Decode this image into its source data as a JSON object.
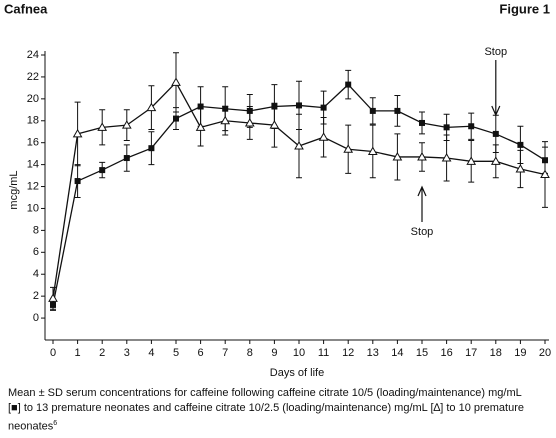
{
  "chart_data": {
    "type": "line",
    "header_left": "Cafnea",
    "header_right": "Figure 1",
    "x_label": "Days of life",
    "y_label": "mcg/mL",
    "x": [
      0,
      1,
      2,
      3,
      4,
      5,
      6,
      7,
      8,
      9,
      10,
      11,
      12,
      13,
      14,
      15,
      16,
      17,
      18,
      19,
      20
    ],
    "series": [
      {
        "marker": "square",
        "color": "#111111",
        "values": [
          1.2,
          12.5,
          13.5,
          14.6,
          15.5,
          18.2,
          19.3,
          19.1,
          18.9,
          19.3,
          19.4,
          19.2,
          21.3,
          18.9,
          18.9,
          17.8,
          17.4,
          17.5,
          16.8,
          15.8,
          14.4
        ],
        "errors": [
          0.5,
          1.5,
          0.7,
          1.2,
          1.5,
          1.0,
          1.8,
          2.0,
          1.5,
          2.0,
          2.2,
          1.5,
          1.3,
          1.2,
          1.4,
          1.0,
          1.2,
          1.2,
          1.7,
          1.7,
          1.2
        ]
      },
      {
        "marker": "triangle",
        "color": "#111111",
        "values": [
          1.8,
          16.8,
          17.4,
          17.6,
          19.2,
          21.5,
          17.4,
          18.0,
          17.8,
          17.6,
          15.7,
          16.5,
          15.4,
          15.2,
          14.7,
          14.7,
          14.6,
          14.3,
          14.3,
          13.6,
          13.1
        ],
        "errors": [
          1.0,
          2.9,
          1.6,
          1.4,
          2.0,
          2.7,
          1.7,
          1.3,
          1.5,
          2.0,
          2.9,
          1.8,
          2.2,
          2.4,
          2.1,
          1.3,
          2.1,
          1.9,
          1.5,
          1.7,
          3.0
        ]
      }
    ],
    "xlim": [
      0,
      20
    ],
    "xticks": [
      0,
      1,
      2,
      3,
      4,
      5,
      6,
      7,
      8,
      9,
      10,
      11,
      12,
      13,
      14,
      15,
      16,
      17,
      18,
      19,
      20
    ],
    "ylim": [
      -2,
      24
    ],
    "yticks": [
      0,
      2,
      4,
      6,
      8,
      10,
      12,
      14,
      16,
      18,
      20,
      22,
      24
    ],
    "annotations": [
      {
        "text": "Stop",
        "x": 18,
        "side": "top"
      },
      {
        "text": "Stop",
        "x": 15,
        "side": "bottom"
      }
    ],
    "caption": [
      "Mean ± SD serum concentrations for caffeine following caffeine citrate 10/5 (loading/maintenance) mg/mL",
      "[■] to 13 premature neonates and caffeine citrate 10/2.5 (loading/maintenance) mg/mL [∆] to 10 premature",
      "neonates"
    ],
    "caption_superscript": "6"
  }
}
